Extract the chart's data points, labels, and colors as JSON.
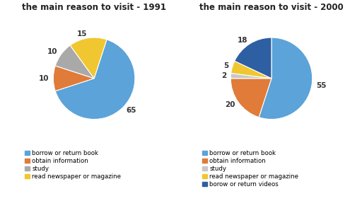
{
  "chart1": {
    "title": "the main reason to visit - 1991",
    "values": [
      65,
      10,
      10,
      15
    ],
    "labels": [
      "65",
      "10",
      "10",
      "15"
    ],
    "colors": [
      "#5BA3D9",
      "#E07B39",
      "#A9A9A9",
      "#F0C730"
    ],
    "legend": [
      "borrow or return book",
      "obtain information",
      "study",
      "read newspaper or magazine"
    ],
    "startangle": 72
  },
  "chart2": {
    "title": "the main reason to visit - 2000",
    "values": [
      55,
      20,
      2,
      5,
      18
    ],
    "labels": [
      "55",
      "20",
      "2",
      "5",
      "18"
    ],
    "colors": [
      "#5BA3D9",
      "#E07B39",
      "#C8C8C8",
      "#F0C730",
      "#2E5FA3"
    ],
    "legend": [
      "borrow or return book",
      "obtain information",
      "study",
      "read newspaper or magazine",
      "borow or return videos"
    ],
    "startangle": 90
  },
  "bg_color": "#FFFFFF",
  "title_fontsize": 8.5,
  "legend_fontsize": 6.2,
  "label_fontsize": 7.5
}
